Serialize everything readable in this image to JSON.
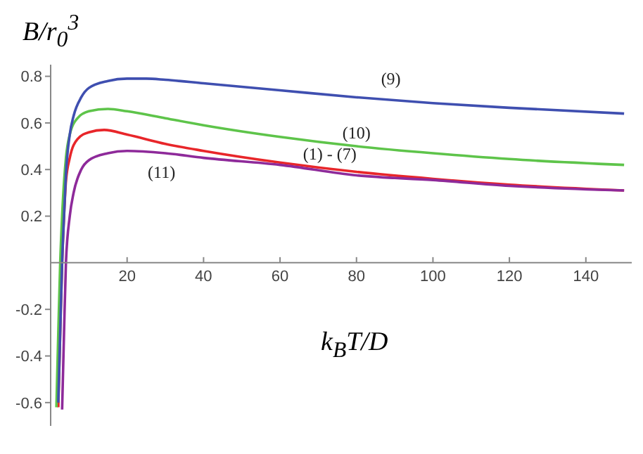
{
  "chart_data": {
    "type": "line",
    "xlabel": "k$_{B}$T/D",
    "ylabel": "B/r$_{0}$$^{3}$",
    "xlim": [
      0,
      152
    ],
    "ylim": [
      -0.7,
      0.85
    ],
    "xticks": [
      20,
      40,
      60,
      80,
      100,
      120,
      140
    ],
    "yticks": [
      -0.6,
      -0.4,
      -0.2,
      0.2,
      0.4,
      0.6,
      0.8
    ],
    "grid": false,
    "legend": false,
    "series": [
      {
        "name": "(9)",
        "color": "#3f4fb0",
        "x": [
          2,
          2.5,
          3,
          3.5,
          4,
          5,
          6,
          8,
          10,
          15,
          20,
          25,
          30,
          40,
          60,
          80,
          100,
          120,
          150
        ],
        "values": [
          -0.6,
          -0.3,
          0,
          0.2,
          0.38,
          0.55,
          0.63,
          0.71,
          0.75,
          0.78,
          0.79,
          0.79,
          0.785,
          0.77,
          0.74,
          0.71,
          0.685,
          0.665,
          0.64
        ]
      },
      {
        "name": "(10)",
        "color": "#5ec44a",
        "x": [
          1.5,
          2,
          2.5,
          3,
          4,
          5,
          7,
          10,
          15,
          20,
          30,
          40,
          60,
          80,
          100,
          120,
          150
        ],
        "values": [
          -0.62,
          -0.3,
          0,
          0.2,
          0.45,
          0.55,
          0.62,
          0.65,
          0.66,
          0.65,
          0.62,
          0.59,
          0.54,
          0.5,
          0.47,
          0.445,
          0.42
        ]
      },
      {
        "name": "(1) - (7)",
        "color": "#e8262a",
        "x": [
          2,
          2.5,
          3,
          3.5,
          4,
          5,
          7,
          10,
          14,
          20,
          30,
          40,
          60,
          80,
          100,
          120,
          150
        ],
        "values": [
          -0.62,
          -0.3,
          0,
          0.2,
          0.35,
          0.45,
          0.53,
          0.56,
          0.57,
          0.55,
          0.51,
          0.48,
          0.43,
          0.39,
          0.36,
          0.335,
          0.31
        ]
      },
      {
        "name": "(11)",
        "color": "#8e2a9a",
        "x": [
          3,
          3.5,
          4,
          5,
          6,
          8,
          10,
          15,
          20,
          30,
          40,
          60,
          80,
          100,
          120,
          150
        ],
        "values": [
          -0.63,
          -0.3,
          0,
          0.2,
          0.3,
          0.4,
          0.44,
          0.47,
          0.48,
          0.47,
          0.45,
          0.42,
          0.375,
          0.355,
          0.33,
          0.31
        ]
      }
    ]
  }
}
